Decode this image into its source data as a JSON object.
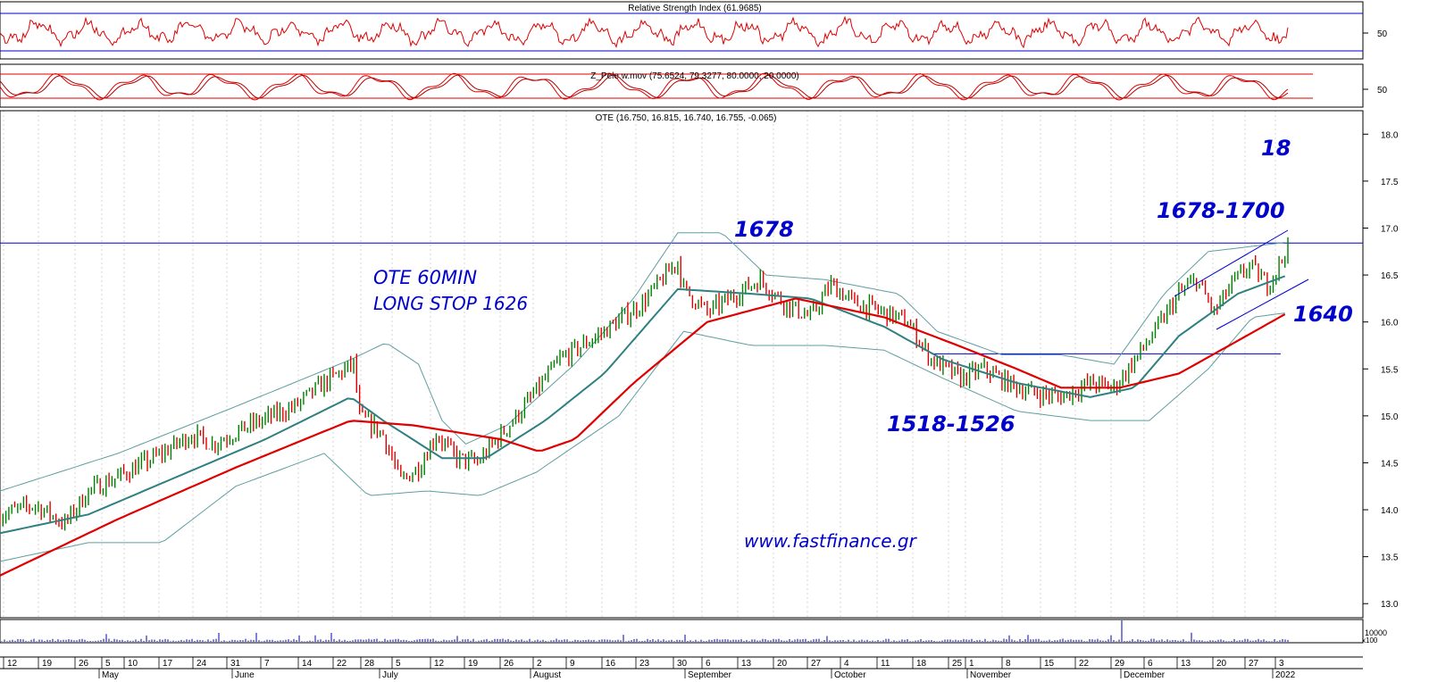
{
  "chart_data": [
    {
      "type": "line",
      "title": "Relative Strength Index (61.9685)",
      "y_ticks": [
        "50"
      ],
      "last_value": 61.9685,
      "guide_lines": [
        70,
        30
      ],
      "colors": {
        "line": "#e00000",
        "guides": "#0000cc"
      }
    },
    {
      "type": "line",
      "title": "Z_Pele w.mov (75.6524, 79.3277, 80.0000, 20.0000)",
      "y_ticks": [
        "50"
      ],
      "values": [
        75.6524,
        79.3277
      ],
      "guide_lines": [
        80,
        20
      ],
      "colors": {
        "line": "#e00000",
        "guides": "#e00000"
      }
    },
    {
      "type": "candlestick",
      "title": "OTE (16.750, 16.815, 16.740, 16.755, -0.065)",
      "ohlc_last": {
        "open": 16.75,
        "high": 16.815,
        "low": 16.74,
        "close": 16.755,
        "change": -0.065
      },
      "y_ticks": [
        "18.0",
        "17.5",
        "17.0",
        "16.5",
        "16.0",
        "15.5",
        "15.0",
        "14.5",
        "14.0",
        "13.5",
        "13.0"
      ],
      "ylim": [
        12.85,
        18.25
      ],
      "x_day_labels": [
        "12",
        "19",
        "26",
        "5",
        "10",
        "17",
        "24",
        "31",
        "7",
        "14",
        "22",
        "28",
        "5",
        "12",
        "19",
        "26",
        "2",
        "9",
        "16",
        "23",
        "30",
        "6",
        "13",
        "20",
        "27",
        "4",
        "11",
        "18",
        "25",
        "1",
        "8",
        "15",
        "22",
        "29",
        "6",
        "13",
        "20",
        "27",
        "3"
      ],
      "x_month_labels": [
        "May",
        "June",
        "July",
        "August",
        "September",
        "October",
        "November",
        "December",
        "2022"
      ],
      "price_path": [
        [
          0,
          13.95
        ],
        [
          12,
          14.05
        ],
        [
          22,
          13.85
        ],
        [
          30,
          14.2
        ],
        [
          40,
          14.35
        ],
        [
          55,
          14.6
        ],
        [
          65,
          14.8
        ],
        [
          72,
          14.7
        ],
        [
          85,
          14.9
        ],
        [
          100,
          15.1
        ],
        [
          110,
          15.35
        ],
        [
          120,
          15.55
        ],
        [
          122,
          15.0
        ],
        [
          130,
          14.8
        ],
        [
          136,
          14.3
        ],
        [
          142,
          14.45
        ],
        [
          148,
          14.8
        ],
        [
          155,
          14.55
        ],
        [
          162,
          14.5
        ],
        [
          170,
          14.8
        ],
        [
          178,
          15.1
        ],
        [
          190,
          15.6
        ],
        [
          205,
          15.9
        ],
        [
          218,
          16.2
        ],
        [
          230,
          16.65
        ],
        [
          232,
          16.35
        ],
        [
          240,
          16.1
        ],
        [
          250,
          16.3
        ],
        [
          258,
          16.45
        ],
        [
          266,
          16.2
        ],
        [
          275,
          16.05
        ],
        [
          282,
          16.4
        ],
        [
          290,
          16.2
        ],
        [
          300,
          16.1
        ],
        [
          308,
          16.0
        ],
        [
          316,
          15.6
        ],
        [
          326,
          15.4
        ],
        [
          334,
          15.5
        ],
        [
          342,
          15.35
        ],
        [
          350,
          15.25
        ],
        [
          360,
          15.2
        ],
        [
          370,
          15.35
        ],
        [
          378,
          15.3
        ],
        [
          384,
          15.55
        ],
        [
          392,
          15.9
        ],
        [
          400,
          16.3
        ],
        [
          406,
          16.45
        ],
        [
          412,
          16.1
        ],
        [
          418,
          16.4
        ],
        [
          424,
          16.6
        ],
        [
          430,
          16.4
        ],
        [
          434,
          16.6
        ],
        [
          437,
          16.8
        ]
      ],
      "mid_band": [
        [
          0,
          13.75
        ],
        [
          30,
          13.95
        ],
        [
          60,
          14.35
        ],
        [
          90,
          14.75
        ],
        [
          119,
          15.2
        ],
        [
          130,
          14.95
        ],
        [
          150,
          14.55
        ],
        [
          165,
          14.55
        ],
        [
          185,
          14.95
        ],
        [
          205,
          15.45
        ],
        [
          230,
          16.35
        ],
        [
          255,
          16.3
        ],
        [
          275,
          16.25
        ],
        [
          300,
          15.95
        ],
        [
          320,
          15.6
        ],
        [
          345,
          15.35
        ],
        [
          370,
          15.2
        ],
        [
          385,
          15.3
        ],
        [
          400,
          15.85
        ],
        [
          420,
          16.3
        ],
        [
          437,
          16.5
        ]
      ],
      "upper_band": [
        [
          0,
          14.2
        ],
        [
          40,
          14.6
        ],
        [
          80,
          15.1
        ],
        [
          119,
          15.6
        ],
        [
          131,
          15.78
        ],
        [
          142,
          15.55
        ],
        [
          150,
          14.95
        ],
        [
          158,
          14.7
        ],
        [
          172,
          14.9
        ],
        [
          195,
          15.55
        ],
        [
          215,
          16.25
        ],
        [
          230,
          16.95
        ],
        [
          245,
          16.95
        ],
        [
          260,
          16.5
        ],
        [
          280,
          16.45
        ],
        [
          305,
          16.3
        ],
        [
          318,
          15.9
        ],
        [
          340,
          15.65
        ],
        [
          360,
          15.65
        ],
        [
          378,
          15.55
        ],
        [
          395,
          16.3
        ],
        [
          410,
          16.75
        ],
        [
          437,
          16.85
        ]
      ],
      "lower_band": [
        [
          0,
          13.45
        ],
        [
          30,
          13.65
        ],
        [
          55,
          13.65
        ],
        [
          80,
          14.25
        ],
        [
          110,
          14.6
        ],
        [
          125,
          14.15
        ],
        [
          145,
          14.2
        ],
        [
          163,
          14.15
        ],
        [
          182,
          14.4
        ],
        [
          210,
          15.0
        ],
        [
          232,
          15.9
        ],
        [
          255,
          15.75
        ],
        [
          280,
          15.75
        ],
        [
          300,
          15.7
        ],
        [
          320,
          15.4
        ],
        [
          345,
          15.05
        ],
        [
          370,
          14.95
        ],
        [
          390,
          14.95
        ],
        [
          410,
          15.5
        ],
        [
          425,
          16.05
        ],
        [
          437,
          16.1
        ]
      ],
      "ma_red": [
        [
          0,
          13.3
        ],
        [
          40,
          13.9
        ],
        [
          80,
          14.45
        ],
        [
          119,
          14.95
        ],
        [
          140,
          14.9
        ],
        [
          170,
          14.75
        ],
        [
          183,
          14.62
        ],
        [
          195,
          14.75
        ],
        [
          215,
          15.35
        ],
        [
          240,
          16.0
        ],
        [
          270,
          16.25
        ],
        [
          300,
          16.05
        ],
        [
          325,
          15.75
        ],
        [
          345,
          15.5
        ],
        [
          360,
          15.3
        ],
        [
          380,
          15.3
        ],
        [
          400,
          15.45
        ],
        [
          420,
          15.8
        ],
        [
          437,
          16.1
        ]
      ],
      "resistance": 16.84,
      "support": 15.66,
      "colors": {
        "up": "#008000",
        "down": "#e00000",
        "bands": "#5f9ea0",
        "mid": "#2f8080",
        "ma": "#e00000",
        "lines": "#0000cc"
      }
    }
  ],
  "annotations": {
    "title_note": "OTE 60MIN",
    "stop_note": "LONG STOP 1626",
    "level_1678": "1678",
    "level_18": "18",
    "level_range": "1678-1700",
    "level_1640": "1640",
    "level_low_range": "1518-1526",
    "watermark": "www.fastfinance.gr"
  },
  "volume_axis": {
    "label": "10000",
    "unit": "x100"
  }
}
